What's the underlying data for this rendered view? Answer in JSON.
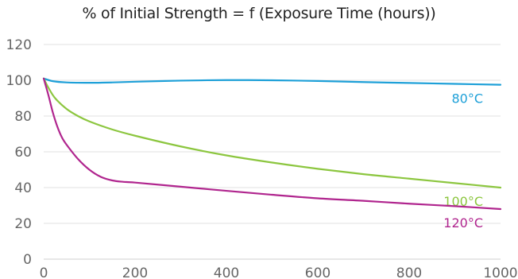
{
  "chart_data": {
    "type": "line",
    "title": "% of Initial Strength = f (Exposure Time (hours))",
    "xlabel": "",
    "ylabel": "",
    "xlim": [
      0,
      1000
    ],
    "ylim": [
      0,
      120
    ],
    "xticks": [
      0,
      200,
      400,
      600,
      800,
      1000
    ],
    "yticks": [
      0,
      20,
      40,
      60,
      80,
      100,
      120
    ],
    "grid": "horizontal",
    "series": [
      {
        "name": "80°C",
        "color": "#1ea0d8",
        "x": [
          0,
          20,
          50,
          100,
          150,
          200,
          300,
          400,
          500,
          600,
          700,
          800,
          900,
          1000
        ],
        "y": [
          101,
          99.5,
          98.8,
          98.6,
          98.8,
          99.2,
          99.8,
          100.1,
          100,
          99.6,
          99.0,
          98.5,
          98.0,
          97.5
        ]
      },
      {
        "name": "100°C",
        "color": "#8cc63f",
        "x": [
          0,
          10,
          25,
          50,
          75,
          100,
          150,
          200,
          300,
          400,
          500,
          600,
          700,
          800,
          900,
          1000
        ],
        "y": [
          101,
          96,
          90,
          84,
          80,
          77,
          72.5,
          69,
          63,
          58,
          54,
          50.5,
          47.5,
          45,
          42.5,
          40
        ]
      },
      {
        "name": "120°C",
        "color": "#b0258e",
        "x": [
          0,
          10,
          20,
          30,
          40,
          50,
          75,
          100,
          125,
          150,
          175,
          200,
          300,
          400,
          500,
          600,
          700,
          800,
          900,
          1000
        ],
        "y": [
          101,
          92,
          82,
          74,
          68,
          64,
          56,
          50,
          46,
          44,
          43.2,
          42.8,
          40.5,
          38.2,
          36,
          34,
          32.6,
          31,
          29.6,
          28
        ]
      }
    ]
  }
}
